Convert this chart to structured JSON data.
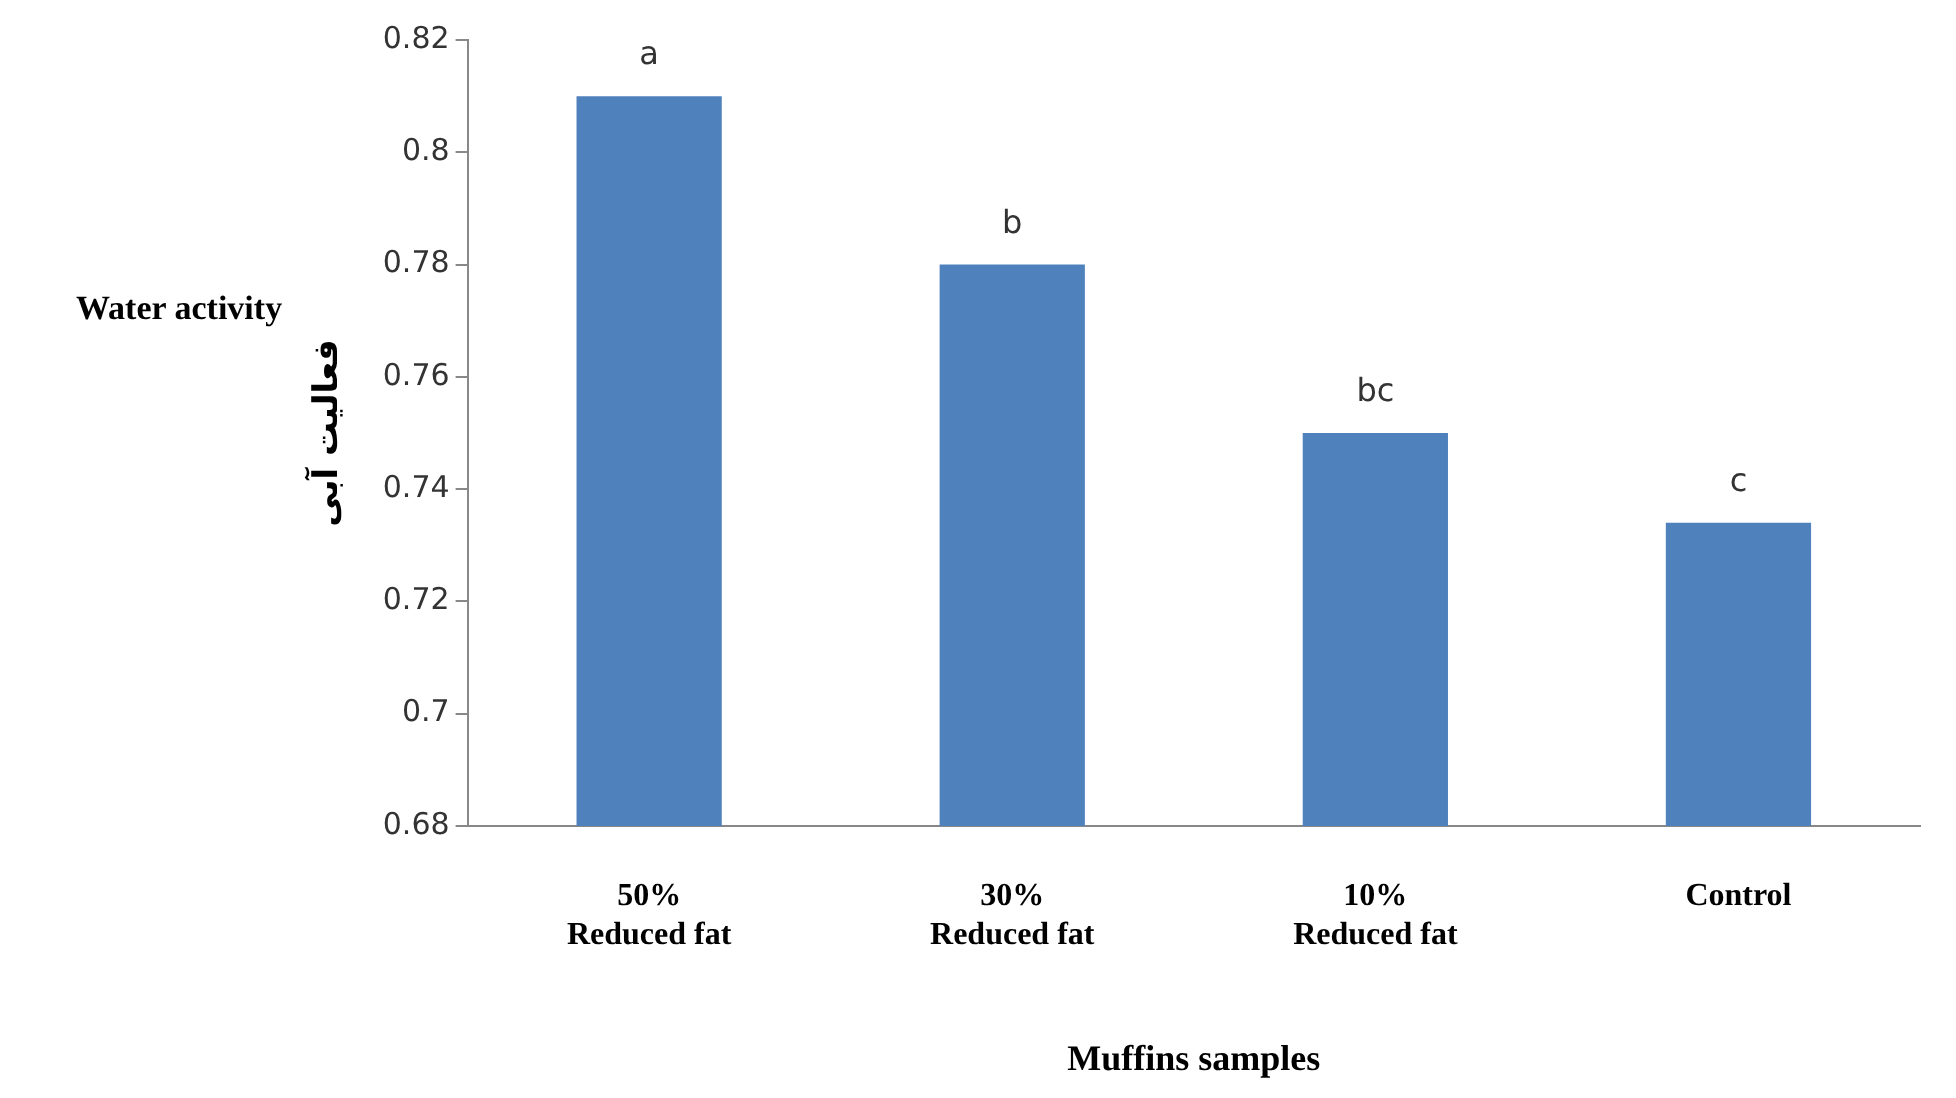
{
  "chart_data": {
    "type": "bar",
    "categories": [
      "50%\nReduced fat",
      "30%\nReduced fat",
      "10%\nReduced fat",
      "Control"
    ],
    "values": [
      0.81,
      0.78,
      0.75,
      0.734
    ],
    "color": "#4f81bd",
    "xlabel": "Muffins samples",
    "ylabel": "فعالیت آبی",
    "ylim": [
      0.68,
      0.82
    ],
    "yticks": [
      0.68,
      0.7,
      0.72,
      0.74,
      0.76,
      0.78,
      0.8,
      0.82
    ],
    "grid": false,
    "legend": false,
    "annotations": [
      {
        "text": "a",
        "x": "50%\nReduced fat",
        "y": 0.81
      },
      {
        "text": "b",
        "x": "30%\nReduced fat",
        "y": 0.78
      },
      {
        "text": "bc",
        "x": "10%\nReduced fat",
        "y": 0.75
      },
      {
        "text": "c",
        "x": "Control",
        "y": 0.734
      },
      "Water activity"
    ]
  }
}
